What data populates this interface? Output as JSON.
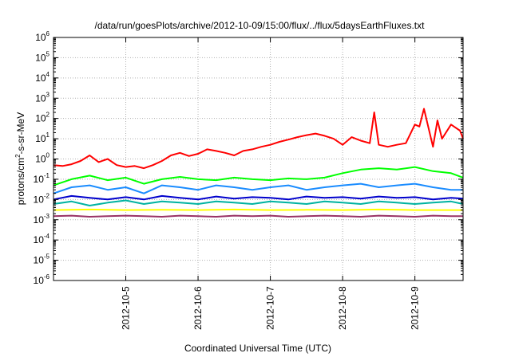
{
  "chart_data": {
    "type": "line",
    "title": "/data/run/goesPlots/archive/2012-10-09/15:00/flux/../flux/5daysEarthFluxes.txt",
    "xlabel": "Coordinated Universal Time (UTC)",
    "ylabel": {
      "base": "protons/cm",
      "sup": "2",
      "rest": "-s-sr-MeV"
    },
    "x_ticks": [
      "2012-10-5",
      "2012-10-6",
      "2012-10-7",
      "2012-10-8",
      "2012-10-9"
    ],
    "xlim": [
      "2012-10-04 00:00",
      "2012-10-09 16:00"
    ],
    "yscale": "log",
    "ylim": [
      1e-06,
      1000000.0
    ],
    "y_ticks": [
      {
        "base": "10",
        "exp": "-6",
        "value": 1e-06
      },
      {
        "base": "10",
        "exp": "-5",
        "value": 1e-05
      },
      {
        "base": "10",
        "exp": "-4",
        "value": 0.0001
      },
      {
        "base": "10",
        "exp": "-3",
        "value": 0.001
      },
      {
        "base": "10",
        "exp": "-2",
        "value": 0.01
      },
      {
        "base": "10",
        "exp": "-1",
        "value": 0.1
      },
      {
        "base": "10",
        "exp": "0",
        "value": 1
      },
      {
        "base": "10",
        "exp": "1",
        "value": 10
      },
      {
        "base": "10",
        "exp": "2",
        "value": 100
      },
      {
        "base": "10",
        "exp": "3",
        "value": 1000
      },
      {
        "base": "10",
        "exp": "4",
        "value": 10000
      },
      {
        "base": "10",
        "exp": "5",
        "value": 100000
      },
      {
        "base": "10",
        "exp": "6",
        "value": 1000000
      }
    ],
    "grid": true,
    "series": [
      {
        "color": "#ff0000",
        "x": [
          "2012-10-04 00:00",
          "2012-10-04 03:00",
          "2012-10-04 06:00",
          "2012-10-04 09:00",
          "2012-10-04 12:00",
          "2012-10-04 15:00",
          "2012-10-04 18:00",
          "2012-10-04 21:00",
          "2012-10-05 00:00",
          "2012-10-05 03:00",
          "2012-10-05 06:00",
          "2012-10-05 09:00",
          "2012-10-05 12:00",
          "2012-10-05 15:00",
          "2012-10-05 18:00",
          "2012-10-05 21:00",
          "2012-10-06 00:00",
          "2012-10-06 03:00",
          "2012-10-06 06:00",
          "2012-10-06 09:00",
          "2012-10-06 12:00",
          "2012-10-06 15:00",
          "2012-10-06 18:00",
          "2012-10-06 21:00",
          "2012-10-07 00:00",
          "2012-10-07 03:00",
          "2012-10-07 06:00",
          "2012-10-07 09:00",
          "2012-10-07 12:00",
          "2012-10-07 15:00",
          "2012-10-07 18:00",
          "2012-10-07 21:00",
          "2012-10-08 00:00",
          "2012-10-08 03:00",
          "2012-10-08 06:00",
          "2012-10-08 09:00",
          "2012-10-08 10:30",
          "2012-10-08 12:00",
          "2012-10-08 15:00",
          "2012-10-08 18:00",
          "2012-10-08 21:00",
          "2012-10-09 00:00",
          "2012-10-09 01:30",
          "2012-10-09 03:00",
          "2012-10-09 06:00",
          "2012-10-09 07:30",
          "2012-10-09 09:00",
          "2012-10-09 12:00",
          "2012-10-09 15:00",
          "2012-10-09 16:00"
        ],
        "values": [
          0.5,
          0.45,
          0.55,
          0.8,
          1.5,
          0.7,
          1.0,
          0.5,
          0.4,
          0.45,
          0.35,
          0.5,
          0.8,
          1.5,
          2.0,
          1.4,
          1.8,
          3.0,
          2.5,
          2.0,
          1.5,
          2.5,
          3.0,
          4.0,
          5.0,
          7.0,
          9.0,
          12,
          15,
          18,
          14,
          10,
          5,
          12,
          8,
          6,
          200,
          5,
          4,
          5,
          6,
          50,
          40,
          300,
          4,
          80,
          10,
          50,
          25,
          10
        ]
      },
      {
        "color": "#00ff00",
        "x": [
          "2012-10-04 00:00",
          "2012-10-04 06:00",
          "2012-10-04 12:00",
          "2012-10-04 18:00",
          "2012-10-05 00:00",
          "2012-10-05 06:00",
          "2012-10-05 12:00",
          "2012-10-05 18:00",
          "2012-10-06 00:00",
          "2012-10-06 06:00",
          "2012-10-06 12:00",
          "2012-10-06 18:00",
          "2012-10-07 00:00",
          "2012-10-07 06:00",
          "2012-10-07 12:00",
          "2012-10-07 18:00",
          "2012-10-08 00:00",
          "2012-10-08 06:00",
          "2012-10-08 12:00",
          "2012-10-08 18:00",
          "2012-10-09 00:00",
          "2012-10-09 06:00",
          "2012-10-09 12:00",
          "2012-10-09 16:00"
        ],
        "values": [
          0.05,
          0.1,
          0.15,
          0.09,
          0.12,
          0.06,
          0.1,
          0.13,
          0.1,
          0.09,
          0.12,
          0.1,
          0.09,
          0.11,
          0.1,
          0.12,
          0.2,
          0.3,
          0.35,
          0.3,
          0.4,
          0.25,
          0.2,
          0.12
        ]
      },
      {
        "color": "#1a8cff",
        "x": [
          "2012-10-04 00:00",
          "2012-10-04 06:00",
          "2012-10-04 12:00",
          "2012-10-04 18:00",
          "2012-10-05 00:00",
          "2012-10-05 06:00",
          "2012-10-05 12:00",
          "2012-10-05 18:00",
          "2012-10-06 00:00",
          "2012-10-06 06:00",
          "2012-10-06 12:00",
          "2012-10-06 18:00",
          "2012-10-07 00:00",
          "2012-10-07 06:00",
          "2012-10-07 12:00",
          "2012-10-07 18:00",
          "2012-10-08 00:00",
          "2012-10-08 06:00",
          "2012-10-08 12:00",
          "2012-10-08 18:00",
          "2012-10-09 00:00",
          "2012-10-09 06:00",
          "2012-10-09 12:00",
          "2012-10-09 16:00"
        ],
        "values": [
          0.02,
          0.04,
          0.05,
          0.03,
          0.04,
          0.02,
          0.05,
          0.04,
          0.03,
          0.05,
          0.04,
          0.03,
          0.04,
          0.05,
          0.03,
          0.04,
          0.05,
          0.06,
          0.04,
          0.05,
          0.06,
          0.04,
          0.03,
          0.03
        ]
      },
      {
        "color": "#0000cc",
        "x": [
          "2012-10-04 00:00",
          "2012-10-04 06:00",
          "2012-10-04 12:00",
          "2012-10-04 18:00",
          "2012-10-05 00:00",
          "2012-10-05 06:00",
          "2012-10-05 12:00",
          "2012-10-05 18:00",
          "2012-10-06 00:00",
          "2012-10-06 06:00",
          "2012-10-06 12:00",
          "2012-10-06 18:00",
          "2012-10-07 00:00",
          "2012-10-07 06:00",
          "2012-10-07 12:00",
          "2012-10-07 18:00",
          "2012-10-08 00:00",
          "2012-10-08 06:00",
          "2012-10-08 12:00",
          "2012-10-08 18:00",
          "2012-10-09 00:00",
          "2012-10-09 06:00",
          "2012-10-09 12:00",
          "2012-10-09 16:00"
        ],
        "values": [
          0.01,
          0.015,
          0.012,
          0.01,
          0.013,
          0.01,
          0.015,
          0.012,
          0.01,
          0.014,
          0.011,
          0.013,
          0.012,
          0.01,
          0.014,
          0.012,
          0.013,
          0.011,
          0.014,
          0.012,
          0.013,
          0.01,
          0.012,
          0.011
        ]
      },
      {
        "color": "#00b3a1",
        "x": [
          "2012-10-04 00:00",
          "2012-10-04 06:00",
          "2012-10-04 12:00",
          "2012-10-04 18:00",
          "2012-10-05 00:00",
          "2012-10-05 06:00",
          "2012-10-05 12:00",
          "2012-10-05 18:00",
          "2012-10-06 00:00",
          "2012-10-06 06:00",
          "2012-10-06 12:00",
          "2012-10-06 18:00",
          "2012-10-07 00:00",
          "2012-10-07 06:00",
          "2012-10-07 12:00",
          "2012-10-07 18:00",
          "2012-10-08 00:00",
          "2012-10-08 06:00",
          "2012-10-08 12:00",
          "2012-10-08 18:00",
          "2012-10-09 00:00",
          "2012-10-09 06:00",
          "2012-10-09 12:00",
          "2012-10-09 16:00"
        ],
        "values": [
          0.006,
          0.008,
          0.005,
          0.007,
          0.009,
          0.006,
          0.008,
          0.007,
          0.006,
          0.008,
          0.007,
          0.006,
          0.008,
          0.007,
          0.006,
          0.008,
          0.007,
          0.006,
          0.008,
          0.007,
          0.006,
          0.007,
          0.008,
          0.006
        ]
      },
      {
        "color": "#ffff00",
        "x": [
          "2012-10-04 00:00",
          "2012-10-04 12:00",
          "2012-10-05 00:00",
          "2012-10-05 12:00",
          "2012-10-06 00:00",
          "2012-10-06 12:00",
          "2012-10-07 00:00",
          "2012-10-07 12:00",
          "2012-10-08 00:00",
          "2012-10-08 12:00",
          "2012-10-09 00:00",
          "2012-10-09 16:00"
        ],
        "values": [
          0.003,
          0.0032,
          0.003,
          0.0031,
          0.003,
          0.0032,
          0.003,
          0.0031,
          0.003,
          0.0032,
          0.003,
          0.003
        ]
      },
      {
        "color": "#993366",
        "x": [
          "2012-10-04 00:00",
          "2012-10-04 06:00",
          "2012-10-04 12:00",
          "2012-10-04 18:00",
          "2012-10-05 00:00",
          "2012-10-05 06:00",
          "2012-10-05 12:00",
          "2012-10-05 18:00",
          "2012-10-06 00:00",
          "2012-10-06 06:00",
          "2012-10-06 12:00",
          "2012-10-06 18:00",
          "2012-10-07 00:00",
          "2012-10-07 06:00",
          "2012-10-07 12:00",
          "2012-10-07 18:00",
          "2012-10-08 00:00",
          "2012-10-08 06:00",
          "2012-10-08 12:00",
          "2012-10-08 18:00",
          "2012-10-09 00:00",
          "2012-10-09 06:00",
          "2012-10-09 12:00",
          "2012-10-09 16:00"
        ],
        "values": [
          0.0015,
          0.0016,
          0.0014,
          0.0015,
          0.0016,
          0.0015,
          0.0014,
          0.0016,
          0.0015,
          0.0014,
          0.0016,
          0.0015,
          0.0016,
          0.0014,
          0.0015,
          0.0016,
          0.0015,
          0.0014,
          0.0016,
          0.0015,
          0.0014,
          0.0016,
          0.0015,
          0.0015
        ]
      }
    ]
  }
}
